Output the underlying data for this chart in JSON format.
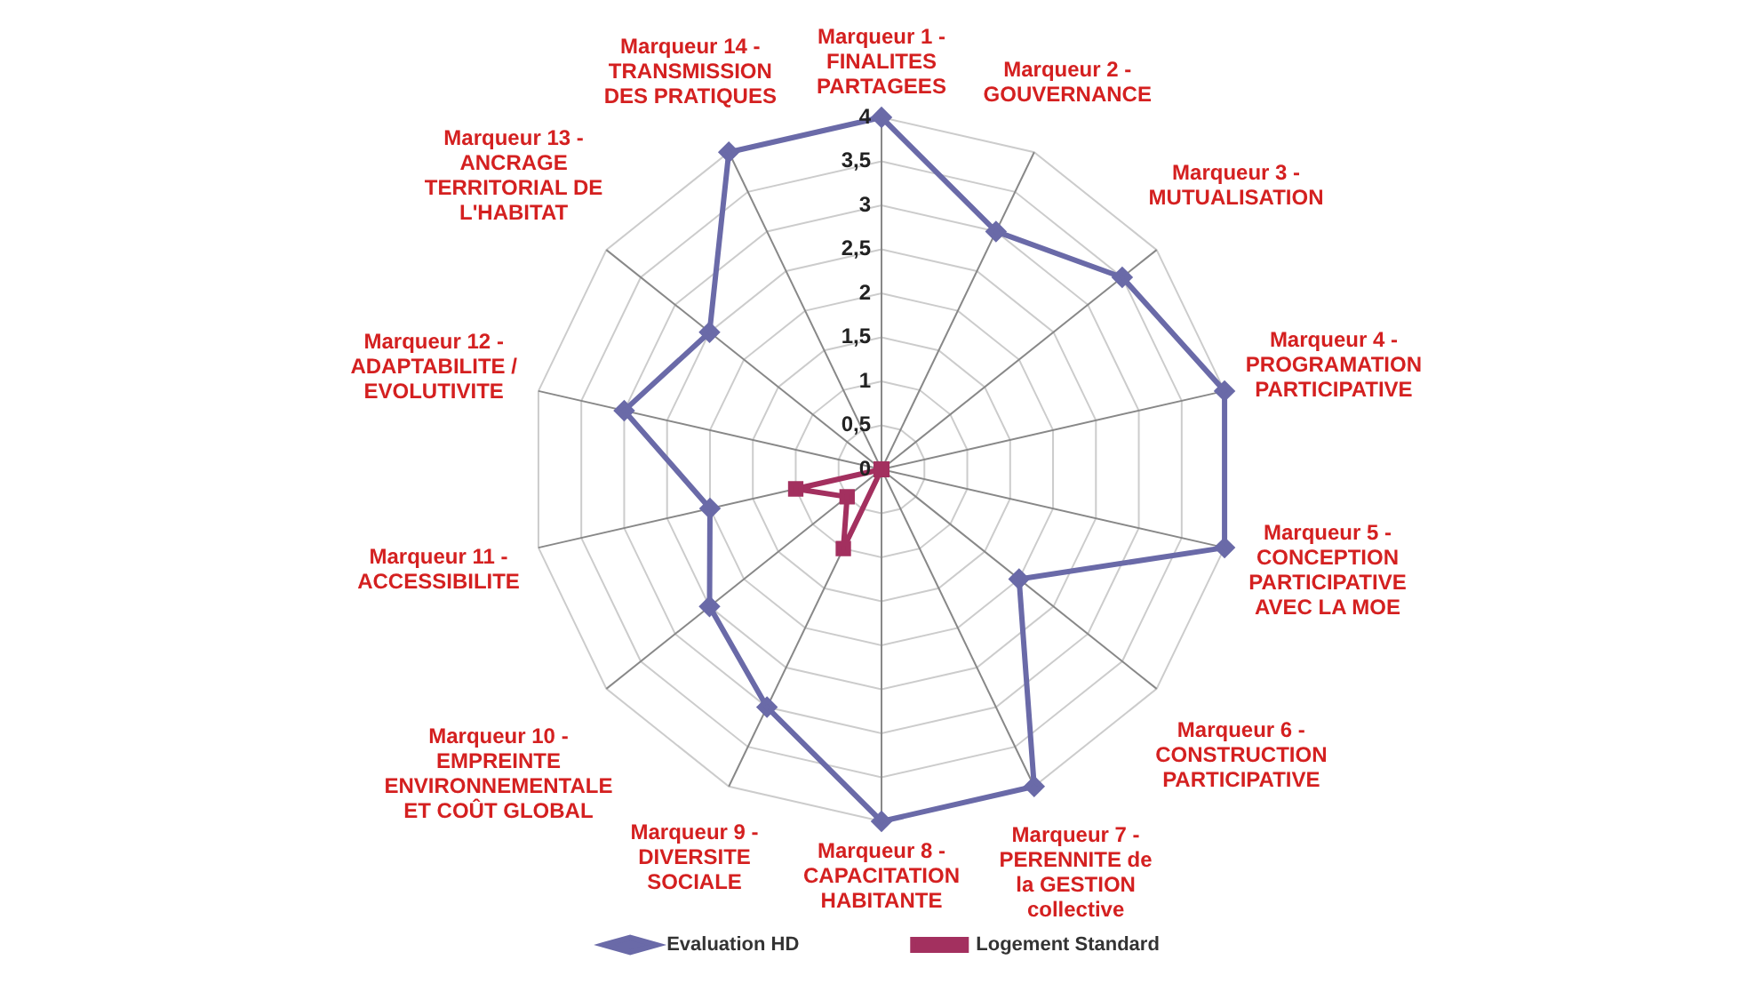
{
  "chart_data": {
    "type": "radar",
    "categories": [
      "Marqueur 1 - FINALITES PARTAGEES",
      "Marqueur 2 - GOUVERNANCE",
      "Marqueur 3 - MUTUALISATION",
      "Marqueur 4 - PROGRAMATION PARTICIPATIVE",
      "Marqueur 5 - CONCEPTION PARTICIPATIVE AVEC LA MOE",
      "Marqueur 6 - CONSTRUCTION PARTICIPATIVE",
      "Marqueur 7 - PERENNITE de la GESTION collective",
      "Marqueur 8 - CAPACITATION HABITANTE",
      "Marqueur 9 - DIVERSITE SOCIALE",
      "Marqueur 10 - EMPREINTE ENVIRONNEMENTALE ET COÛT GLOBAL",
      "Marqueur 11 - ACCESSIBILITE",
      "Marqueur 12 - ADAPTABILITE / EVOLUTIVITE",
      "Marqueur 13 - ANCRAGE TERRITORIAL DE L'HABITAT",
      "Marqueur 14 - TRANSMISSION DES PRATIQUES"
    ],
    "series": [
      {
        "name": "Evaluation HD",
        "color": "#6a6aa8",
        "marker": "diamond",
        "values": [
          4,
          3,
          3.5,
          4,
          4,
          2,
          4,
          4,
          3,
          2.5,
          2,
          3,
          2.5,
          4
        ]
      },
      {
        "name": "Logement Standard",
        "color": "#a3305f",
        "marker": "square",
        "values": [
          0,
          0,
          0,
          0,
          0,
          0,
          0,
          0,
          1,
          0.5,
          1,
          0,
          0,
          0
        ]
      }
    ],
    "ylim": [
      0,
      4
    ],
    "yticks": [
      0,
      {
        "value": 0.5,
        "label": "0,5"
      },
      1,
      {
        "value": 1.5,
        "label": "1,5"
      },
      2,
      {
        "value": 2.5,
        "label": "2,5"
      },
      3,
      {
        "value": 3.5,
        "label": "3,5"
      },
      4
    ],
    "grid": true,
    "legend": "bottom"
  }
}
